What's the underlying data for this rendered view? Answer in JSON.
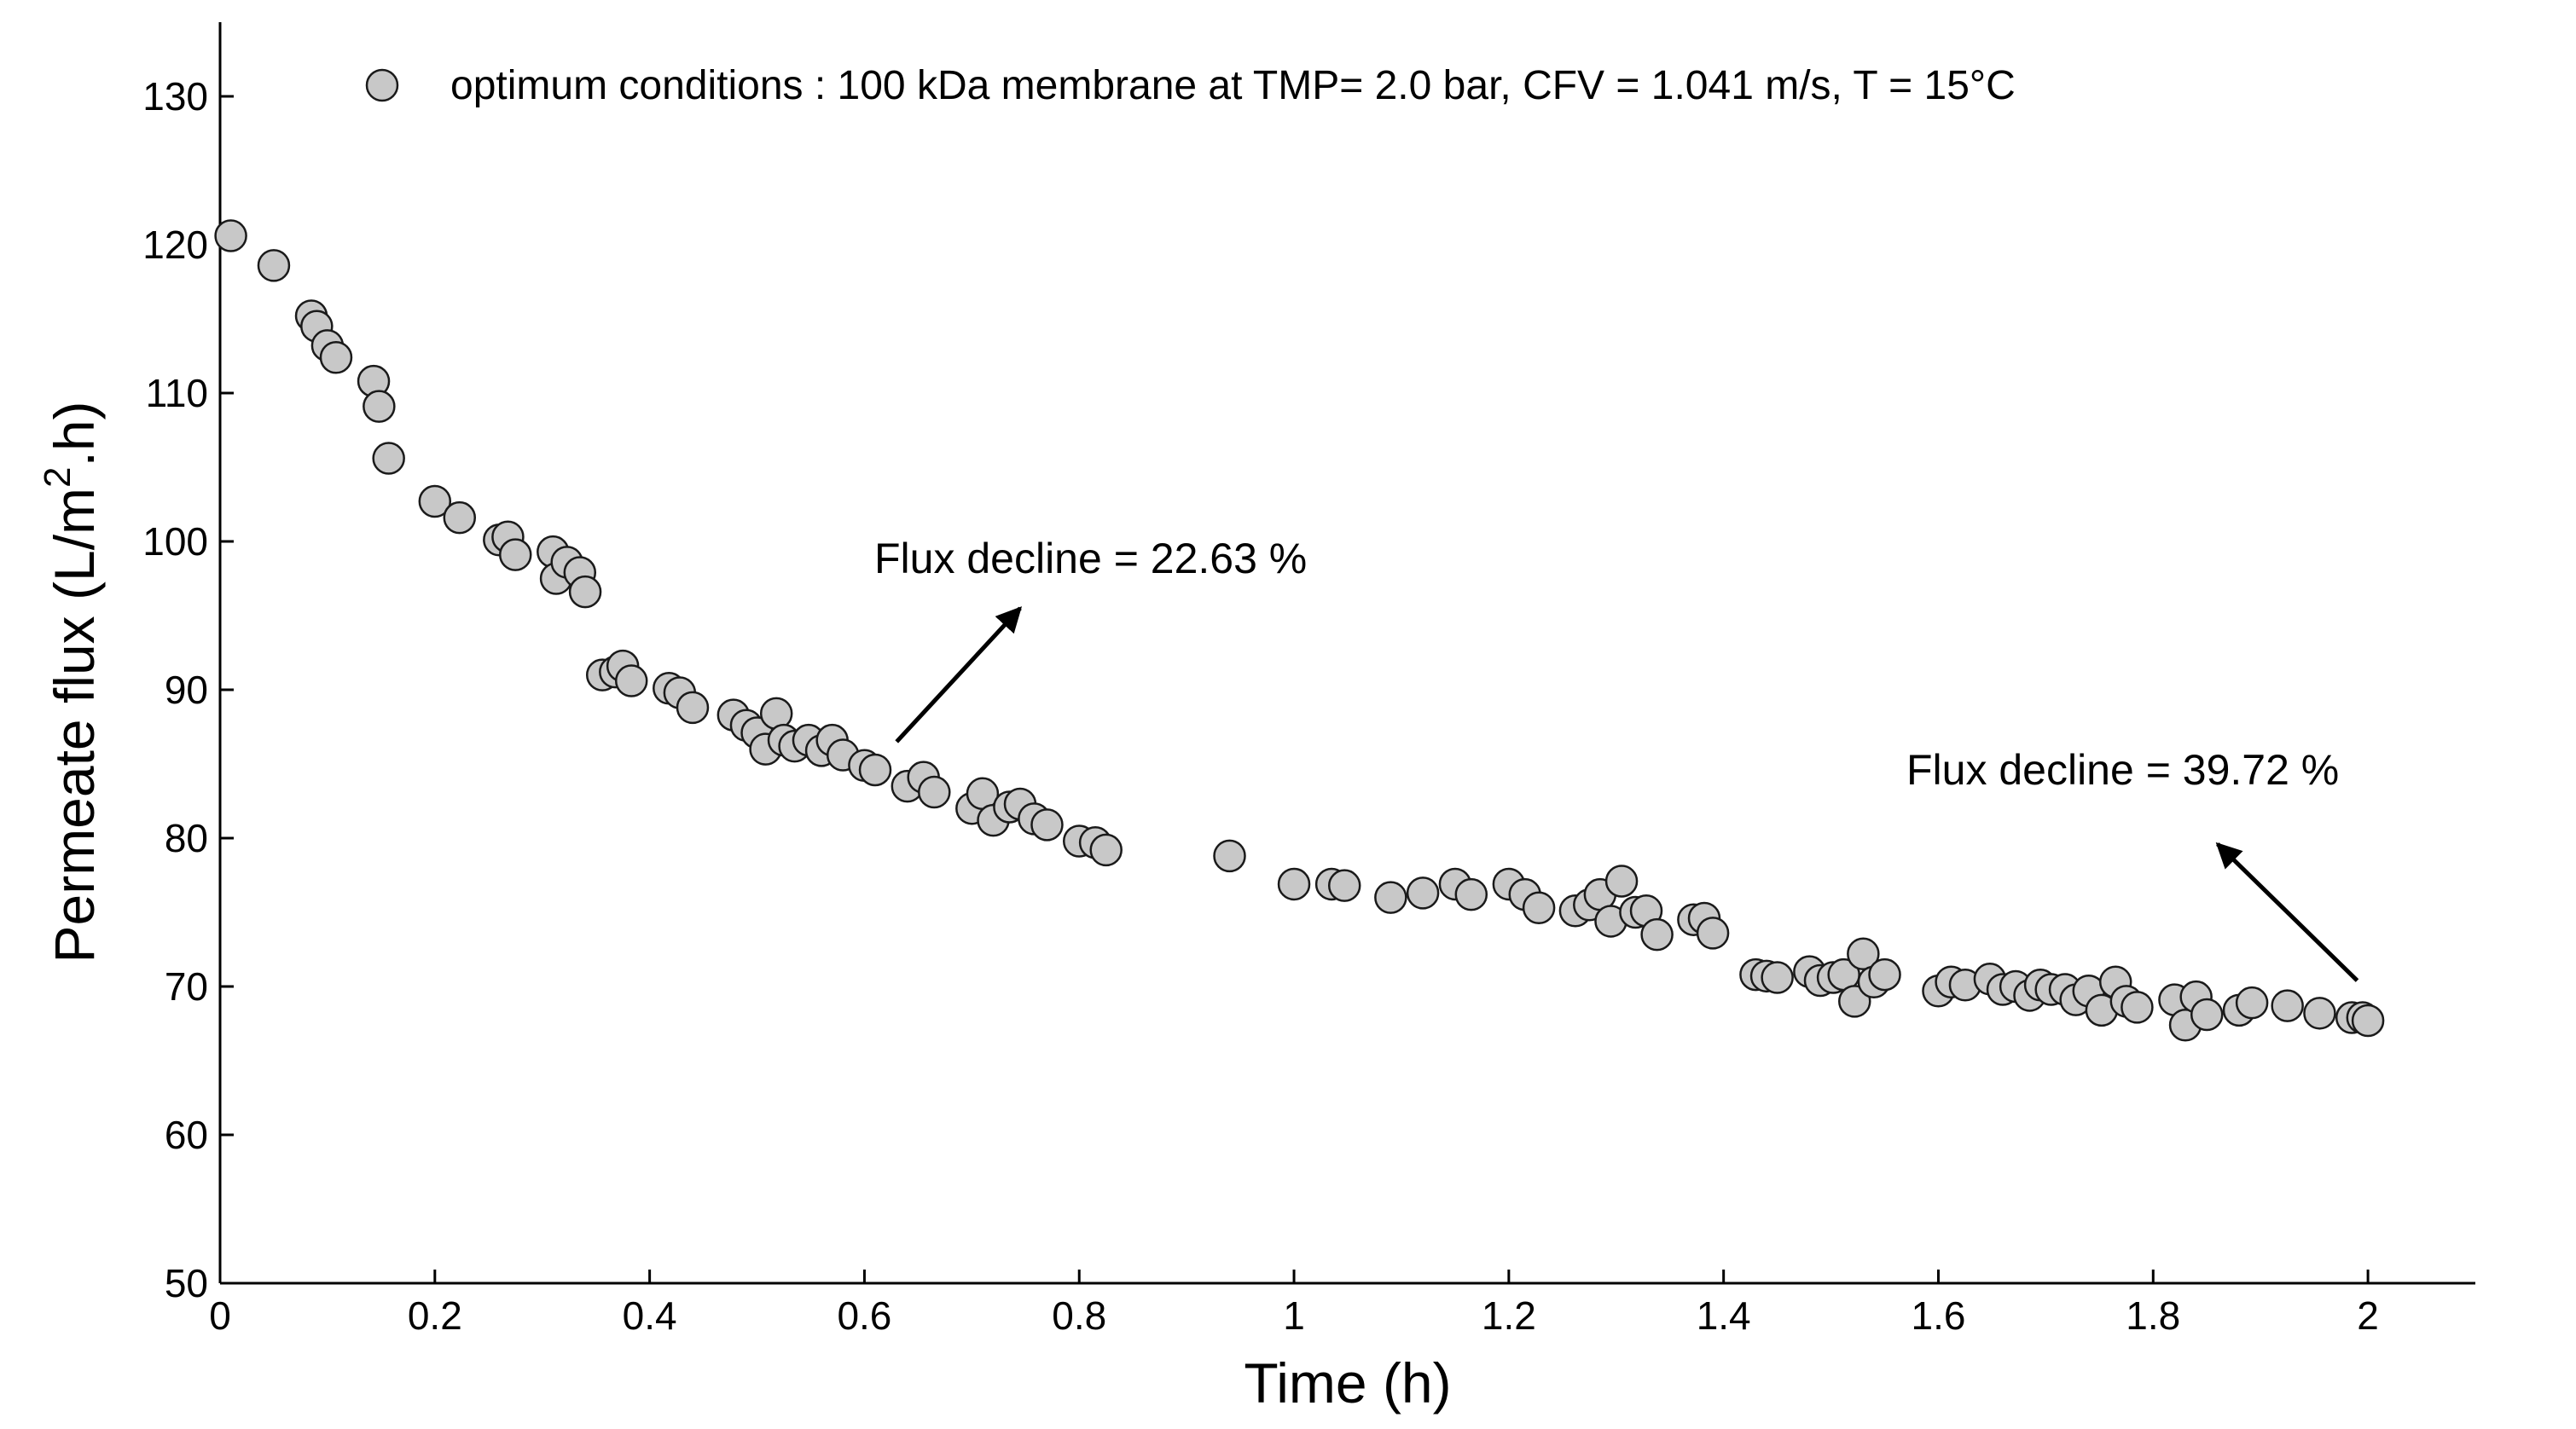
{
  "chart_data": {
    "type": "scatter",
    "title": "",
    "xlabel": "Time (h)",
    "ylabel_parts": [
      "Permeate flux (L/m",
      "2",
      ".h)"
    ],
    "xlim": [
      0,
      2.1
    ],
    "ylim": [
      50,
      135
    ],
    "xticks": [
      0,
      0.2,
      0.4,
      0.6,
      0.8,
      1,
      1.2,
      1.4,
      1.6,
      1.8,
      2
    ],
    "yticks": [
      50,
      60,
      70,
      80,
      90,
      100,
      110,
      120,
      130
    ],
    "grid": false,
    "legend_position": "top",
    "colors": {
      "marker_fill": "#c8c8c8",
      "marker_edge": "#1a1a1a",
      "axis": "#000000"
    },
    "series": [
      {
        "name": "optimum conditions : 100 kDa membrane at TMP= 2.0 bar, CFV = 1.041  m/s, T = 15°C",
        "points": [
          [
            0.01,
            120.6
          ],
          [
            0.05,
            118.6
          ],
          [
            0.085,
            115.2
          ],
          [
            0.09,
            114.5
          ],
          [
            0.1,
            113.2
          ],
          [
            0.108,
            112.4
          ],
          [
            0.143,
            110.8
          ],
          [
            0.148,
            109.1
          ],
          [
            0.157,
            105.6
          ],
          [
            0.2,
            102.7
          ],
          [
            0.223,
            101.6
          ],
          [
            0.26,
            100.1
          ],
          [
            0.268,
            100.3
          ],
          [
            0.275,
            99.1
          ],
          [
            0.31,
            99.3
          ],
          [
            0.313,
            97.5
          ],
          [
            0.323,
            98.6
          ],
          [
            0.335,
            97.9
          ],
          [
            0.34,
            96.6
          ],
          [
            0.356,
            91.0
          ],
          [
            0.368,
            91.2
          ],
          [
            0.375,
            91.6
          ],
          [
            0.383,
            90.6
          ],
          [
            0.418,
            90.1
          ],
          [
            0.428,
            89.8
          ],
          [
            0.44,
            88.8
          ],
          [
            0.478,
            88.3
          ],
          [
            0.49,
            87.6
          ],
          [
            0.5,
            87.1
          ],
          [
            0.508,
            86.0
          ],
          [
            0.518,
            88.4
          ],
          [
            0.525,
            86.6
          ],
          [
            0.535,
            86.2
          ],
          [
            0.548,
            86.6
          ],
          [
            0.56,
            85.9
          ],
          [
            0.57,
            86.6
          ],
          [
            0.58,
            85.6
          ],
          [
            0.6,
            84.9
          ],
          [
            0.61,
            84.6
          ],
          [
            0.64,
            83.5
          ],
          [
            0.655,
            84.1
          ],
          [
            0.665,
            83.1
          ],
          [
            0.7,
            82.0
          ],
          [
            0.71,
            83.0
          ],
          [
            0.72,
            81.2
          ],
          [
            0.735,
            82.1
          ],
          [
            0.745,
            82.3
          ],
          [
            0.758,
            81.3
          ],
          [
            0.77,
            80.9
          ],
          [
            0.8,
            79.8
          ],
          [
            0.815,
            79.7
          ],
          [
            0.825,
            79.2
          ],
          [
            0.94,
            78.8
          ],
          [
            1.0,
            76.9
          ],
          [
            1.035,
            76.9
          ],
          [
            1.047,
            76.8
          ],
          [
            1.09,
            76.0
          ],
          [
            1.12,
            76.3
          ],
          [
            1.15,
            76.9
          ],
          [
            1.165,
            76.2
          ],
          [
            1.2,
            76.9
          ],
          [
            1.215,
            76.2
          ],
          [
            1.228,
            75.3
          ],
          [
            1.262,
            75.1
          ],
          [
            1.275,
            75.5
          ],
          [
            1.285,
            76.2
          ],
          [
            1.295,
            74.4
          ],
          [
            1.305,
            77.1
          ],
          [
            1.318,
            75.0
          ],
          [
            1.328,
            75.1
          ],
          [
            1.338,
            73.5
          ],
          [
            1.372,
            74.5
          ],
          [
            1.382,
            74.6
          ],
          [
            1.39,
            73.6
          ],
          [
            1.43,
            70.8
          ],
          [
            1.44,
            70.7
          ],
          [
            1.45,
            70.6
          ],
          [
            1.48,
            71.0
          ],
          [
            1.49,
            70.4
          ],
          [
            1.502,
            70.6
          ],
          [
            1.512,
            70.8
          ],
          [
            1.522,
            69.0
          ],
          [
            1.53,
            72.2
          ],
          [
            1.54,
            70.3
          ],
          [
            1.55,
            70.8
          ],
          [
            1.6,
            69.7
          ],
          [
            1.612,
            70.3
          ],
          [
            1.625,
            70.1
          ],
          [
            1.648,
            70.5
          ],
          [
            1.66,
            69.8
          ],
          [
            1.672,
            70.0
          ],
          [
            1.685,
            69.4
          ],
          [
            1.695,
            70.1
          ],
          [
            1.705,
            69.8
          ],
          [
            1.718,
            69.8
          ],
          [
            1.728,
            69.1
          ],
          [
            1.74,
            69.7
          ],
          [
            1.752,
            68.4
          ],
          [
            1.765,
            70.3
          ],
          [
            1.775,
            69.0
          ],
          [
            1.785,
            68.6
          ],
          [
            1.82,
            69.1
          ],
          [
            1.83,
            67.4
          ],
          [
            1.84,
            69.3
          ],
          [
            1.85,
            68.1
          ],
          [
            1.88,
            68.4
          ],
          [
            1.892,
            68.9
          ],
          [
            1.925,
            68.7
          ],
          [
            1.955,
            68.2
          ],
          [
            1.985,
            67.9
          ],
          [
            1.995,
            67.9
          ],
          [
            2.0,
            67.7
          ]
        ]
      }
    ],
    "annotations": [
      {
        "text": "Flux decline = 22.63 %",
        "arrow_from": [
          0.63,
          86.5
        ],
        "arrow_to": [
          0.745,
          95.5
        ]
      },
      {
        "text": "Flux decline = 39.72 %",
        "arrow_from": [
          1.99,
          70.4
        ],
        "arrow_to": [
          1.86,
          79.6
        ]
      }
    ]
  }
}
